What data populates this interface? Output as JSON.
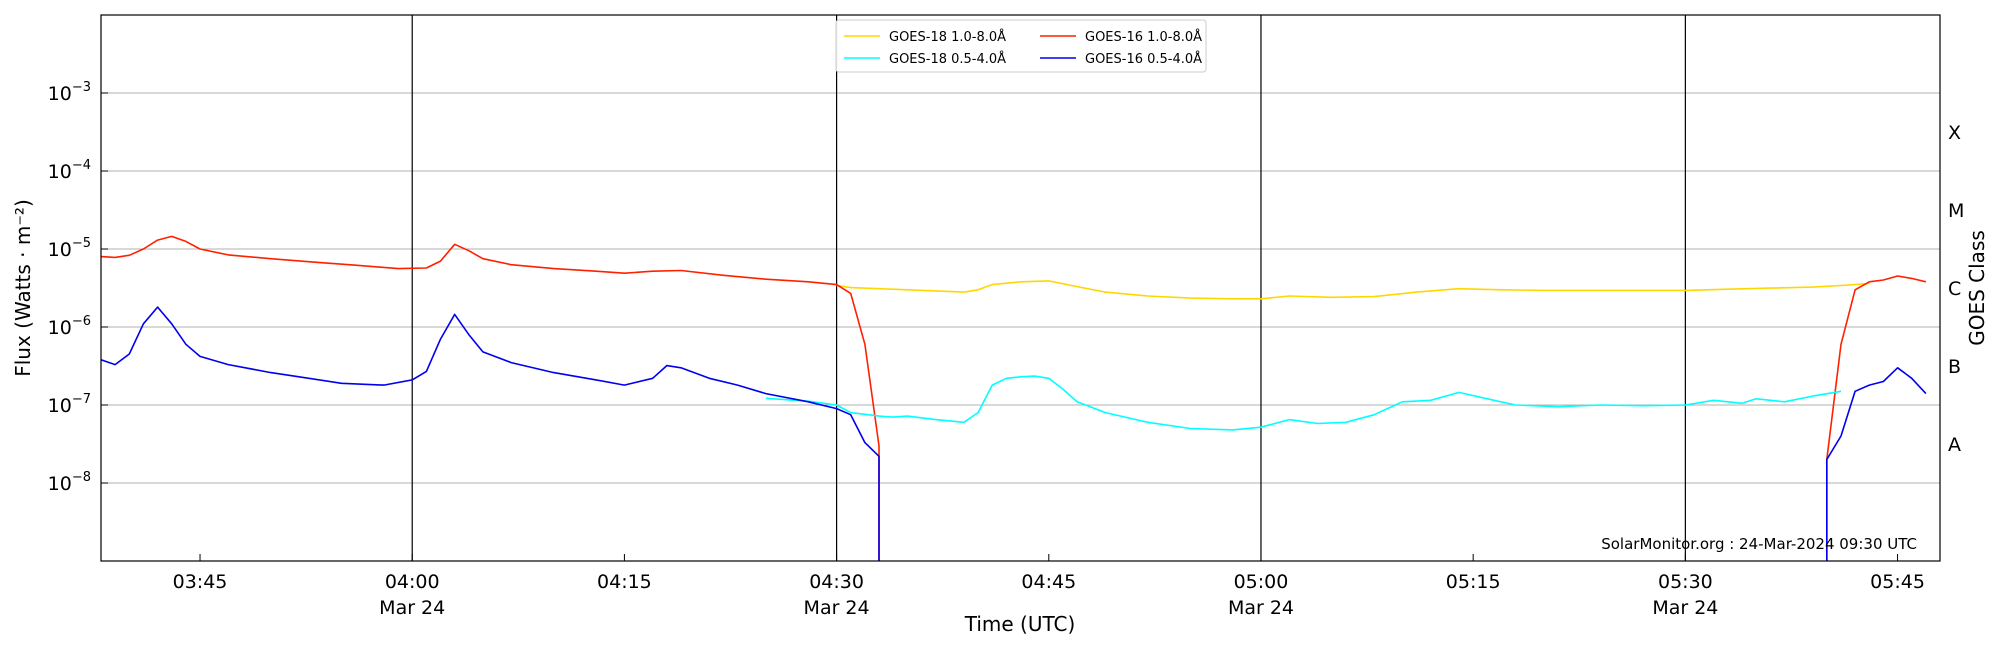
{
  "chart_data": {
    "type": "line",
    "xlabel": "Time (UTC)",
    "ylabel": "Flux (Watts · m⁻²)",
    "y2label": "GOES Class",
    "credit": "SolarMonitor.org : 24-Mar-2024 09:30 UTC",
    "y_scale": "log",
    "ylim": [
      1e-09,
      0.01
    ],
    "xlim": [
      "03:38",
      "05:48"
    ],
    "grid": "horizontal at decades",
    "legend_position": "top-center",
    "y_ticks": [
      {
        "value": 1e-08,
        "base": "10",
        "exp": "−8"
      },
      {
        "value": 1e-07,
        "base": "10",
        "exp": "−7"
      },
      {
        "value": 1e-06,
        "base": "10",
        "exp": "−6"
      },
      {
        "value": 1e-05,
        "base": "10",
        "exp": "−5"
      },
      {
        "value": 0.0001,
        "base": "10",
        "exp": "−4"
      },
      {
        "value": 0.001,
        "base": "10",
        "exp": "−3"
      }
    ],
    "x_ticks": [
      {
        "time": "03:45",
        "label": "03:45",
        "date": ""
      },
      {
        "time": "04:00",
        "label": "04:00",
        "date": "Mar 24"
      },
      {
        "time": "04:15",
        "label": "04:15",
        "date": ""
      },
      {
        "time": "04:30",
        "label": "04:30",
        "date": "Mar 24"
      },
      {
        "time": "04:45",
        "label": "04:45",
        "date": ""
      },
      {
        "time": "05:00",
        "label": "05:00",
        "date": "Mar 24"
      },
      {
        "time": "05:15",
        "label": "05:15",
        "date": ""
      },
      {
        "time": "05:30",
        "label": "05:30",
        "date": "Mar 24"
      },
      {
        "time": "05:45",
        "label": "05:45",
        "date": ""
      }
    ],
    "vertical_lines": [
      "04:00",
      "04:30",
      "05:00",
      "05:30"
    ],
    "goes_classes": [
      {
        "label": "A",
        "value": 3.16e-08
      },
      {
        "label": "B",
        "value": 3.16e-07
      },
      {
        "label": "C",
        "value": 3.16e-06
      },
      {
        "label": "M",
        "value": 3.16e-05
      },
      {
        "label": "X",
        "value": 0.000316
      }
    ],
    "series": [
      {
        "name": "GOES-18 1.0-8.0Å",
        "color": "#ffd700",
        "points": [
          [
            "04:30",
            3.4e-06
          ],
          [
            "04:31",
            3.2e-06
          ],
          [
            "04:33",
            3.1e-06
          ],
          [
            "04:35",
            3e-06
          ],
          [
            "04:37",
            2.9e-06
          ],
          [
            "04:39",
            2.8e-06
          ],
          [
            "04:40",
            3e-06
          ],
          [
            "04:41",
            3.5e-06
          ],
          [
            "04:43",
            3.8e-06
          ],
          [
            "04:45",
            3.9e-06
          ],
          [
            "04:47",
            3.3e-06
          ],
          [
            "04:49",
            2.8e-06
          ],
          [
            "04:52",
            2.5e-06
          ],
          [
            "04:55",
            2.35e-06
          ],
          [
            "04:58",
            2.3e-06
          ],
          [
            "05:00",
            2.3e-06
          ],
          [
            "05:02",
            2.5e-06
          ],
          [
            "05:05",
            2.4e-06
          ],
          [
            "05:08",
            2.45e-06
          ],
          [
            "05:11",
            2.8e-06
          ],
          [
            "05:14",
            3.1e-06
          ],
          [
            "05:17",
            3e-06
          ],
          [
            "05:20",
            2.95e-06
          ],
          [
            "05:25",
            2.95e-06
          ],
          [
            "05:30",
            2.95e-06
          ],
          [
            "05:33",
            3.05e-06
          ],
          [
            "05:36",
            3.15e-06
          ],
          [
            "05:39",
            3.25e-06
          ],
          [
            "05:41",
            3.4e-06
          ],
          [
            "05:43",
            3.6e-06
          ]
        ]
      },
      {
        "name": "GOES-16 1.0-8.0Å",
        "color": "#ff2000",
        "segments": [
          [
            [
              "03:38",
              8e-06
            ],
            [
              "03:39",
              7.8e-06
            ],
            [
              "03:40",
              8.3e-06
            ],
            [
              "03:41",
              1e-05
            ],
            [
              "03:42",
              1.3e-05
            ],
            [
              "03:43",
              1.45e-05
            ],
            [
              "03:44",
              1.25e-05
            ],
            [
              "03:45",
              1e-05
            ],
            [
              "03:47",
              8.4e-06
            ],
            [
              "03:50",
              7.5e-06
            ],
            [
              "03:53",
              6.8e-06
            ],
            [
              "03:56",
              6.2e-06
            ],
            [
              "03:59",
              5.6e-06
            ],
            [
              "04:01",
              5.7e-06
            ],
            [
              "04:02",
              7e-06
            ],
            [
              "04:03",
              1.15e-05
            ],
            [
              "04:04",
              9.5e-06
            ],
            [
              "04:05",
              7.5e-06
            ],
            [
              "04:07",
              6.3e-06
            ],
            [
              "04:10",
              5.6e-06
            ],
            [
              "04:13",
              5.2e-06
            ],
            [
              "04:15",
              4.9e-06
            ],
            [
              "04:17",
              5.2e-06
            ],
            [
              "04:19",
              5.3e-06
            ],
            [
              "04:22",
              4.6e-06
            ],
            [
              "04:25",
              4.1e-06
            ],
            [
              "04:28",
              3.8e-06
            ],
            [
              "04:30",
              3.5e-06
            ],
            [
              "04:31",
              2.7e-06
            ],
            [
              "04:32",
              6e-07
            ],
            [
              "04:33",
              3e-08
            ],
            [
              "04:33",
              1e-09
            ]
          ],
          [
            [
              "05:40",
              1e-09
            ],
            [
              "05:40",
              2e-08
            ],
            [
              "05:41",
              6e-07
            ],
            [
              "05:42",
              3e-06
            ],
            [
              "05:43",
              3.8e-06
            ],
            [
              "05:44",
              4e-06
            ],
            [
              "05:45",
              4.5e-06
            ],
            [
              "05:46",
              4.2e-06
            ],
            [
              "05:47",
              3.8e-06
            ]
          ]
        ]
      },
      {
        "name": "GOES-18 0.5-4.0Å",
        "color": "#00ffff",
        "points": [
          [
            "04:25",
            1.22e-07
          ],
          [
            "04:28",
            1.12e-07
          ],
          [
            "04:30",
            1e-07
          ],
          [
            "04:31",
            8e-08
          ],
          [
            "04:33",
            7.2e-08
          ],
          [
            "04:34",
            7e-08
          ],
          [
            "04:35",
            7.2e-08
          ],
          [
            "04:37",
            6.5e-08
          ],
          [
            "04:39",
            6e-08
          ],
          [
            "04:40",
            8e-08
          ],
          [
            "04:41",
            1.8e-07
          ],
          [
            "04:42",
            2.2e-07
          ],
          [
            "04:43",
            2.3e-07
          ],
          [
            "04:44",
            2.35e-07
          ],
          [
            "04:45",
            2.2e-07
          ],
          [
            "04:46",
            1.6e-07
          ],
          [
            "04:47",
            1.1e-07
          ],
          [
            "04:49",
            8e-08
          ],
          [
            "04:52",
            6e-08
          ],
          [
            "04:55",
            5e-08
          ],
          [
            "04:58",
            4.8e-08
          ],
          [
            "05:00",
            5.2e-08
          ],
          [
            "05:02",
            6.5e-08
          ],
          [
            "05:04",
            5.8e-08
          ],
          [
            "05:06",
            6e-08
          ],
          [
            "05:08",
            7.5e-08
          ],
          [
            "05:10",
            1.1e-07
          ],
          [
            "05:12",
            1.15e-07
          ],
          [
            "05:14",
            1.45e-07
          ],
          [
            "05:16",
            1.2e-07
          ],
          [
            "05:18",
            1e-07
          ],
          [
            "05:21",
            9.5e-08
          ],
          [
            "05:24",
            1e-07
          ],
          [
            "05:27",
            9.8e-08
          ],
          [
            "05:30",
            1e-07
          ],
          [
            "05:32",
            1.15e-07
          ],
          [
            "05:34",
            1.05e-07
          ],
          [
            "05:35",
            1.2e-07
          ],
          [
            "05:37",
            1.1e-07
          ],
          [
            "05:39",
            1.3e-07
          ],
          [
            "05:41",
            1.5e-07
          ]
        ]
      },
      {
        "name": "GOES-16 0.5-4.0Å",
        "color": "#0000ee",
        "segments": [
          [
            [
              "03:38",
              3.8e-07
            ],
            [
              "03:39",
              3.3e-07
            ],
            [
              "03:40",
              4.5e-07
            ],
            [
              "03:41",
              1.1e-06
            ],
            [
              "03:42",
              1.8e-06
            ],
            [
              "03:43",
              1.1e-06
            ],
            [
              "03:44",
              6e-07
            ],
            [
              "03:45",
              4.2e-07
            ],
            [
              "03:47",
              3.3e-07
            ],
            [
              "03:50",
              2.6e-07
            ],
            [
              "03:52",
              2.3e-07
            ],
            [
              "03:55",
              1.9e-07
            ],
            [
              "03:58",
              1.8e-07
            ],
            [
              "04:00",
              2.1e-07
            ],
            [
              "04:01",
              2.7e-07
            ],
            [
              "04:02",
              7e-07
            ],
            [
              "04:03",
              1.45e-06
            ],
            [
              "04:04",
              8e-07
            ],
            [
              "04:05",
              4.8e-07
            ],
            [
              "04:07",
              3.5e-07
            ],
            [
              "04:10",
              2.6e-07
            ],
            [
              "04:13",
              2.1e-07
            ],
            [
              "04:15",
              1.8e-07
            ],
            [
              "04:17",
              2.2e-07
            ],
            [
              "04:18",
              3.2e-07
            ],
            [
              "04:19",
              3e-07
            ],
            [
              "04:21",
              2.2e-07
            ],
            [
              "04:23",
              1.8e-07
            ],
            [
              "04:25",
              1.4e-07
            ],
            [
              "04:28",
              1.1e-07
            ],
            [
              "04:30",
              9e-08
            ],
            [
              "04:31",
              7.5e-08
            ],
            [
              "04:32",
              3.3e-08
            ],
            [
              "04:33",
              2.2e-08
            ],
            [
              "04:33",
              1e-09
            ]
          ],
          [
            [
              "05:40",
              1e-09
            ],
            [
              "05:40",
              2e-08
            ],
            [
              "05:41",
              4e-08
            ],
            [
              "05:42",
              1.5e-07
            ],
            [
              "05:43",
              1.8e-07
            ],
            [
              "05:44",
              2e-07
            ],
            [
              "05:45",
              3e-07
            ],
            [
              "05:46",
              2.2e-07
            ],
            [
              "05:47",
              1.4e-07
            ]
          ]
        ]
      }
    ],
    "legend_order": [
      0,
      2,
      1,
      3
    ]
  }
}
